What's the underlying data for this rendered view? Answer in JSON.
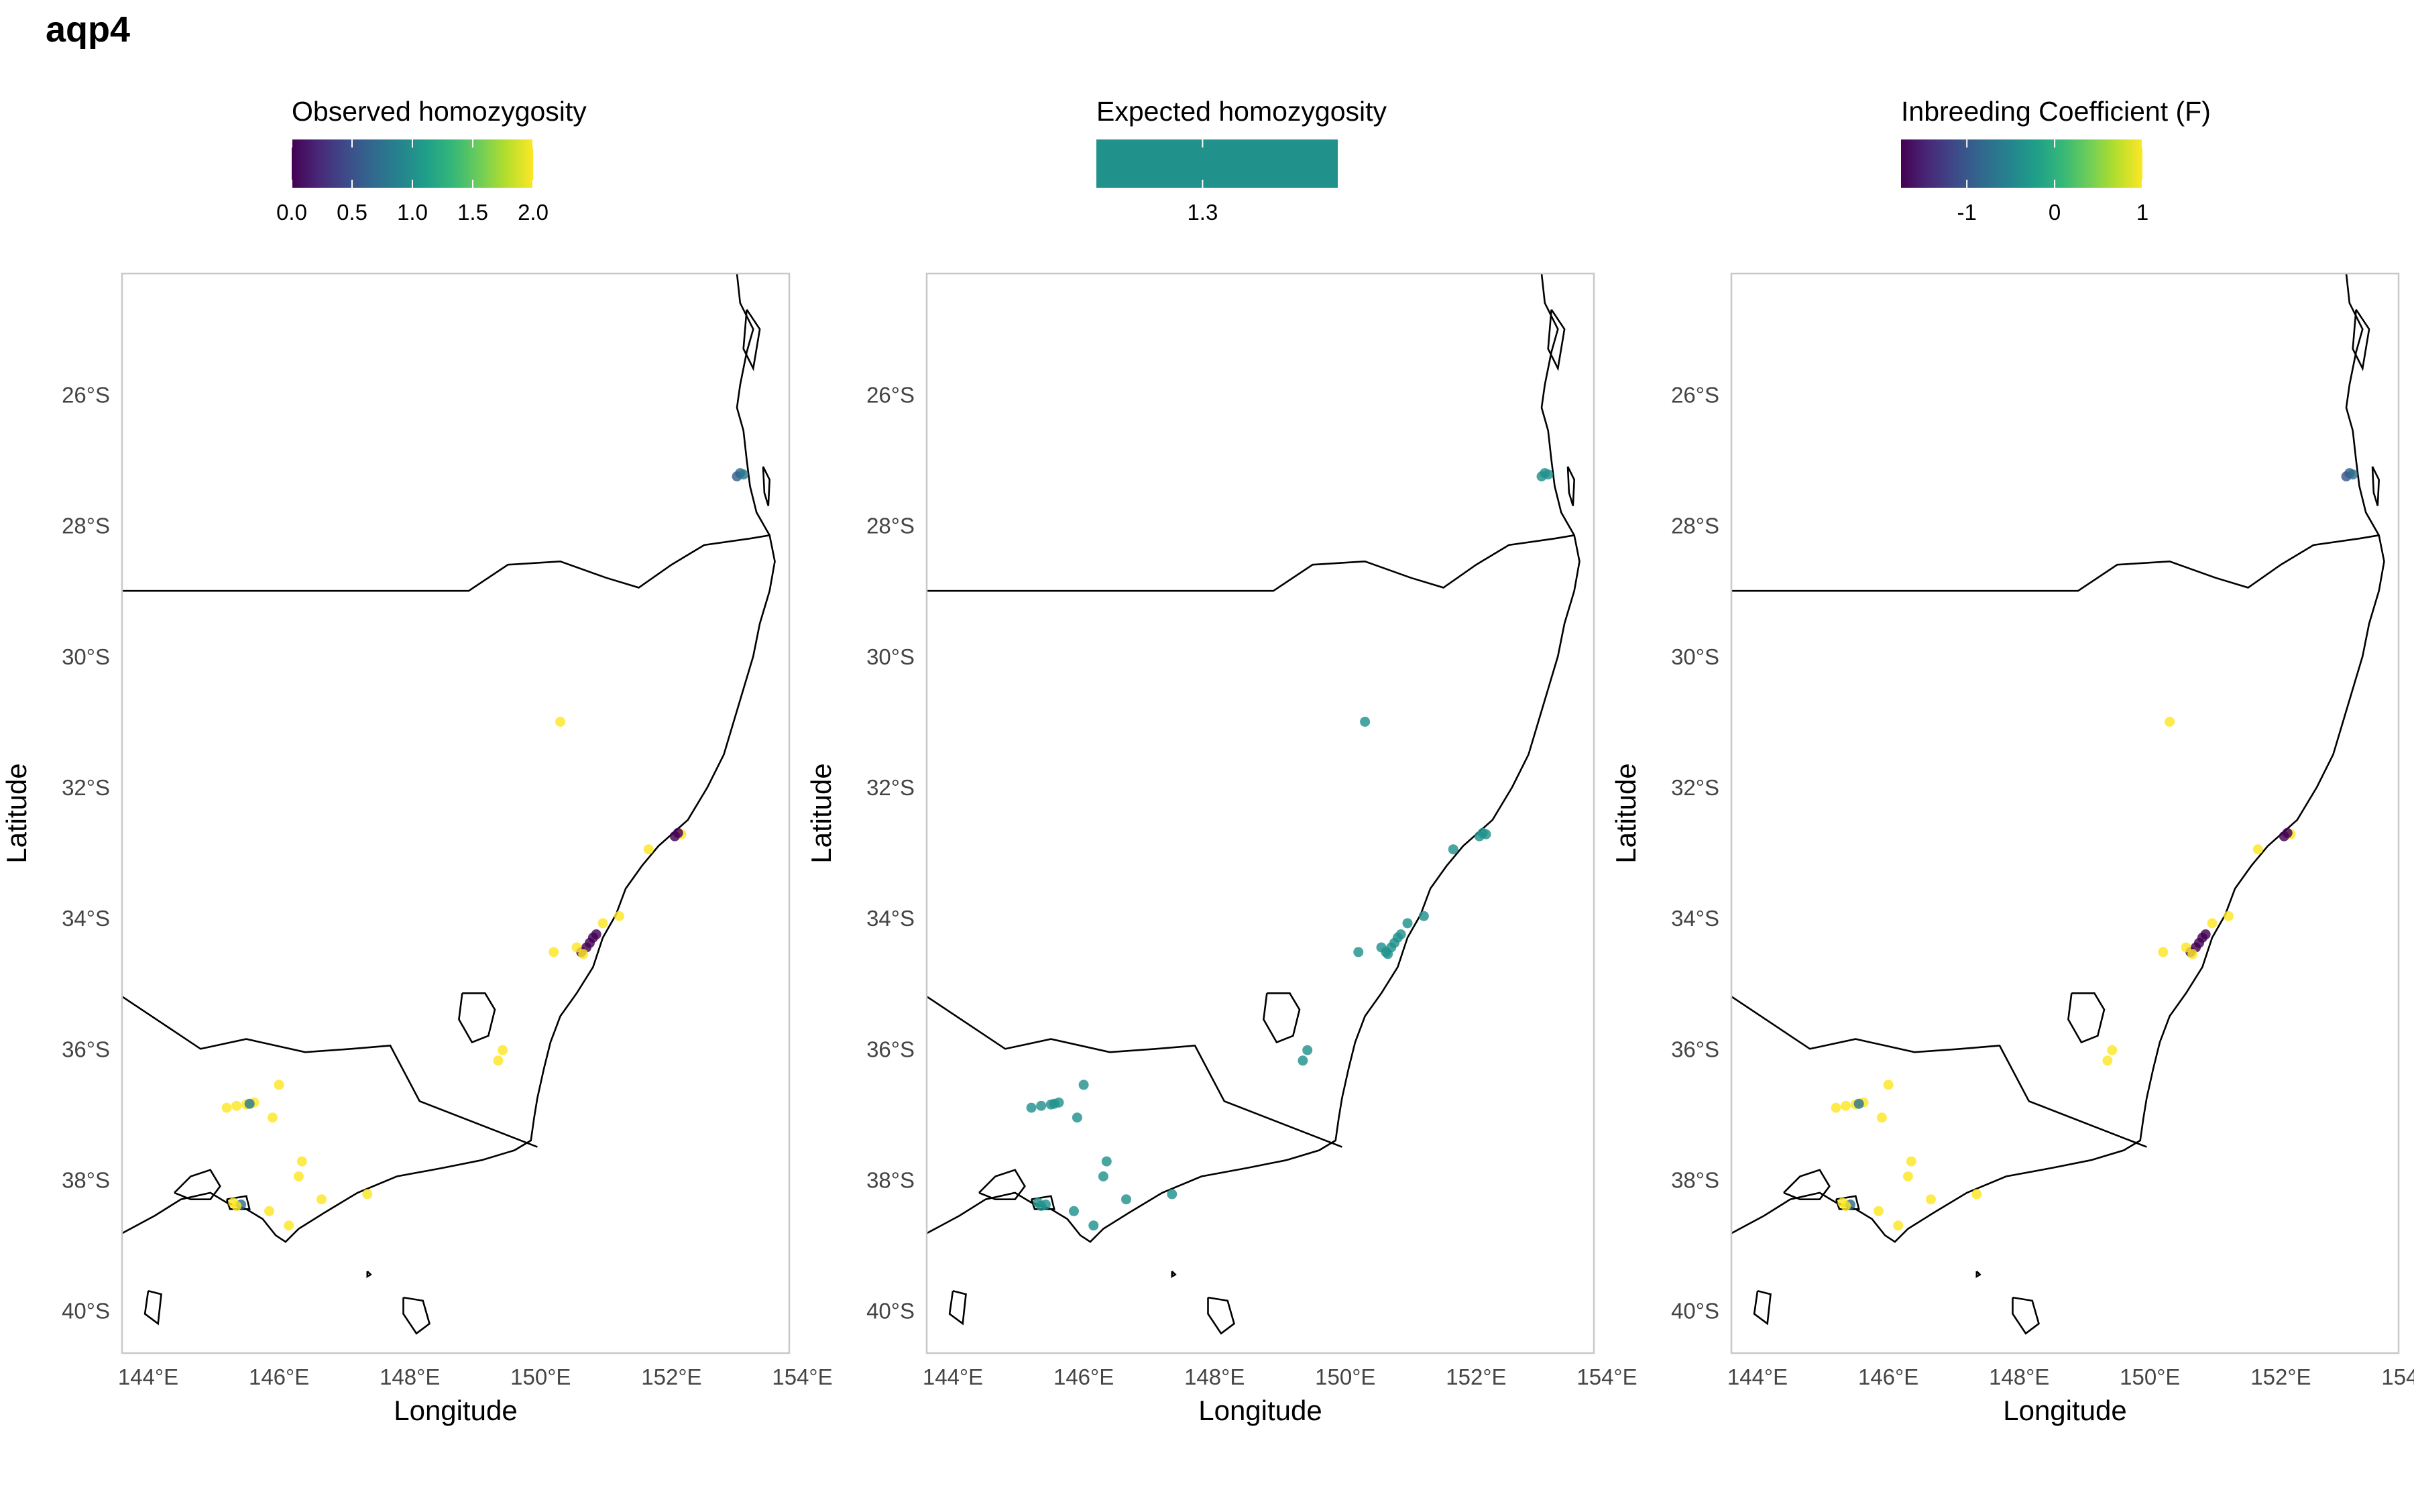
{
  "title": "aqp4",
  "colors": {
    "viridis": [
      "#440154",
      "#482878",
      "#3E4A89",
      "#31688E",
      "#26828E",
      "#1F9E89",
      "#35B779",
      "#6DCD59",
      "#B4DE2C",
      "#FDE725"
    ],
    "expected": "#21918C",
    "panel_border": "#c8c8c8",
    "coast": "#000000"
  },
  "axes": {
    "xlabel": "Longitude",
    "ylabel": "Latitude",
    "lat_ticks": [
      {
        "value": -26,
        "label": "26°S"
      },
      {
        "value": -28,
        "label": "28°S"
      },
      {
        "value": -30,
        "label": "30°S"
      },
      {
        "value": -32,
        "label": "32°S"
      },
      {
        "value": -34,
        "label": "34°S"
      },
      {
        "value": -36,
        "label": "36°S"
      },
      {
        "value": -38,
        "label": "38°S"
      },
      {
        "value": -40,
        "label": "40°S"
      }
    ],
    "lon_ticks": [
      {
        "value": 144,
        "label": "144°E"
      },
      {
        "value": 146,
        "label": "146°E"
      },
      {
        "value": 148,
        "label": "148°E"
      },
      {
        "value": 150,
        "label": "150°E"
      },
      {
        "value": 152,
        "label": "152°E"
      },
      {
        "value": 154,
        "label": "154°E"
      }
    ],
    "xlim": [
      143.6,
      153.8
    ],
    "ylim": [
      -40.65,
      -24.15
    ]
  },
  "panels": [
    {
      "id": "observed",
      "legend_title": "Observed homozygosity",
      "legend_type": "gradient",
      "legend_range": [
        0,
        2
      ],
      "legend_ticks": [
        {
          "value": 0,
          "label": "0.0"
        },
        {
          "value": 0.5,
          "label": "0.5"
        },
        {
          "value": 1,
          "label": "1.0"
        },
        {
          "value": 1.5,
          "label": "1.5"
        },
        {
          "value": 2,
          "label": "2.0"
        }
      ]
    },
    {
      "id": "expected",
      "legend_title": "Expected homozygosity",
      "legend_type": "single",
      "legend_ticks": [
        {
          "value": 1.3,
          "label": "1.3"
        }
      ]
    },
    {
      "id": "inbreeding",
      "legend_title": "Inbreeding Coefficient (F)",
      "legend_type": "gradient",
      "legend_range": [
        -1.75,
        1
      ],
      "legend_ticks": [
        {
          "value": -1,
          "label": "-1"
        },
        {
          "value": 0,
          "label": "0"
        },
        {
          "value": 1,
          "label": "1"
        }
      ]
    }
  ],
  "chart_data": {
    "type": "scatter",
    "samples": [
      {
        "lon": 153.05,
        "lat": -27.2,
        "observed": 0.7,
        "inbreeding": -0.9
      },
      {
        "lon": 153.0,
        "lat": -27.25,
        "observed": 0.6,
        "inbreeding": -1.0
      },
      {
        "lon": 153.1,
        "lat": -27.22,
        "observed": 0.8,
        "inbreeding": -0.8
      },
      {
        "lon": 150.3,
        "lat": -31.0,
        "observed": 2.0,
        "inbreeding": 1.0
      },
      {
        "lon": 151.65,
        "lat": -32.95,
        "observed": 2.0,
        "inbreeding": 1.0
      },
      {
        "lon": 152.15,
        "lat": -32.72,
        "observed": 2.0,
        "inbreeding": 1.0
      },
      {
        "lon": 152.05,
        "lat": -32.75,
        "observed": 0.0,
        "inbreeding": -1.75
      },
      {
        "lon": 152.1,
        "lat": -32.7,
        "observed": 0.0,
        "inbreeding": -1.75
      },
      {
        "lon": 151.2,
        "lat": -33.97,
        "observed": 2.0,
        "inbreeding": 1.0
      },
      {
        "lon": 150.95,
        "lat": -34.08,
        "observed": 2.0,
        "inbreeding": 1.0
      },
      {
        "lon": 150.85,
        "lat": -34.25,
        "observed": 0.0,
        "inbreeding": -1.75
      },
      {
        "lon": 150.8,
        "lat": -34.3,
        "observed": 0.0,
        "inbreeding": -1.75
      },
      {
        "lon": 150.75,
        "lat": -34.38,
        "observed": 0.0,
        "inbreeding": -1.75
      },
      {
        "lon": 150.7,
        "lat": -34.45,
        "observed": 0.0,
        "inbreeding": -1.75
      },
      {
        "lon": 150.62,
        "lat": -34.52,
        "observed": 0.0,
        "inbreeding": -1.75
      },
      {
        "lon": 150.55,
        "lat": -34.45,
        "observed": 2.0,
        "inbreeding": 1.0
      },
      {
        "lon": 150.65,
        "lat": -34.55,
        "observed": 2.0,
        "inbreeding": 1.0
      },
      {
        "lon": 150.2,
        "lat": -34.52,
        "observed": 2.0,
        "inbreeding": 1.0
      },
      {
        "lon": 149.42,
        "lat": -36.02,
        "observed": 2.0,
        "inbreeding": 1.0
      },
      {
        "lon": 149.35,
        "lat": -36.18,
        "observed": 2.0,
        "inbreeding": 1.0
      },
      {
        "lon": 145.2,
        "lat": -36.9,
        "observed": 2.0,
        "inbreeding": 1.0
      },
      {
        "lon": 145.35,
        "lat": -36.87,
        "observed": 2.0,
        "inbreeding": 1.0
      },
      {
        "lon": 145.5,
        "lat": -36.85,
        "observed": 2.0,
        "inbreeding": 1.0
      },
      {
        "lon": 145.62,
        "lat": -36.82,
        "observed": 2.0,
        "inbreeding": 1.0
      },
      {
        "lon": 145.55,
        "lat": -36.84,
        "observed": 0.8,
        "inbreeding": -0.7
      },
      {
        "lon": 145.9,
        "lat": -37.05,
        "observed": 2.0,
        "inbreeding": 1.0
      },
      {
        "lon": 146.0,
        "lat": -36.55,
        "observed": 2.0,
        "inbreeding": 1.0
      },
      {
        "lon": 146.35,
        "lat": -37.72,
        "observed": 2.0,
        "inbreeding": 1.0
      },
      {
        "lon": 146.3,
        "lat": -37.95,
        "observed": 2.0,
        "inbreeding": 1.0
      },
      {
        "lon": 146.65,
        "lat": -38.3,
        "observed": 2.0,
        "inbreeding": 1.0
      },
      {
        "lon": 147.35,
        "lat": -38.22,
        "observed": 2.0,
        "inbreeding": 1.0
      },
      {
        "lon": 145.3,
        "lat": -38.35,
        "observed": 2.0,
        "inbreeding": 1.0
      },
      {
        "lon": 145.42,
        "lat": -38.38,
        "observed": 0.7,
        "inbreeding": -0.8
      },
      {
        "lon": 145.35,
        "lat": -38.4,
        "observed": 2.0,
        "inbreeding": 1.0
      },
      {
        "lon": 145.85,
        "lat": -38.48,
        "observed": 2.0,
        "inbreeding": 1.0
      },
      {
        "lon": 146.15,
        "lat": -38.7,
        "observed": 2.0,
        "inbreeding": 1.0
      }
    ],
    "expected_value": 1.3
  },
  "coast": {
    "mainland": [
      [
        153.0,
        -24.15
      ],
      [
        153.05,
        -24.6
      ],
      [
        153.25,
        -25.0
      ],
      [
        153.15,
        -25.35
      ],
      [
        153.05,
        -25.85
      ],
      [
        153.0,
        -26.2
      ],
      [
        153.1,
        -26.55
      ],
      [
        153.15,
        -27.0
      ],
      [
        153.2,
        -27.4
      ],
      [
        153.3,
        -27.8
      ],
      [
        153.5,
        -28.15
      ],
      [
        153.58,
        -28.55
      ],
      [
        153.5,
        -29.0
      ],
      [
        153.35,
        -29.5
      ],
      [
        153.25,
        -30.0
      ],
      [
        153.1,
        -30.5
      ],
      [
        152.95,
        -31.0
      ],
      [
        152.8,
        -31.5
      ],
      [
        152.55,
        -32.0
      ],
      [
        152.25,
        -32.5
      ],
      [
        151.8,
        -32.9
      ],
      [
        151.55,
        -33.2
      ],
      [
        151.3,
        -33.55
      ],
      [
        151.15,
        -33.95
      ],
      [
        150.95,
        -34.3
      ],
      [
        150.8,
        -34.75
      ],
      [
        150.55,
        -35.15
      ],
      [
        150.3,
        -35.5
      ],
      [
        150.15,
        -35.9
      ],
      [
        150.05,
        -36.3
      ],
      [
        149.95,
        -36.75
      ],
      [
        149.9,
        -37.05
      ],
      [
        149.85,
        -37.4
      ],
      [
        149.6,
        -37.55
      ],
      [
        149.1,
        -37.7
      ],
      [
        148.5,
        -37.82
      ],
      [
        147.8,
        -37.95
      ],
      [
        147.2,
        -38.2
      ],
      [
        146.7,
        -38.5
      ],
      [
        146.3,
        -38.75
      ],
      [
        146.1,
        -38.95
      ],
      [
        145.95,
        -38.85
      ],
      [
        145.75,
        -38.6
      ],
      [
        145.5,
        -38.45
      ],
      [
        145.2,
        -38.35
      ],
      [
        144.95,
        -38.2
      ],
      [
        144.5,
        -38.3
      ],
      [
        144.1,
        -38.55
      ],
      [
        143.6,
        -38.82
      ]
    ],
    "qld_border": [
      [
        143.6,
        -29.0
      ],
      [
        146.5,
        -29.0
      ],
      [
        148.9,
        -29.0
      ],
      [
        149.5,
        -28.6
      ],
      [
        150.3,
        -28.55
      ],
      [
        151.0,
        -28.8
      ],
      [
        151.5,
        -28.95
      ],
      [
        152.0,
        -28.6
      ],
      [
        152.5,
        -28.3
      ],
      [
        153.2,
        -28.2
      ],
      [
        153.5,
        -28.15
      ]
    ],
    "vic_border": [
      [
        143.6,
        -35.2
      ],
      [
        144.2,
        -35.6
      ],
      [
        144.8,
        -36.0
      ],
      [
        145.5,
        -35.85
      ],
      [
        146.4,
        -36.05
      ],
      [
        147.1,
        -36.0
      ],
      [
        147.7,
        -35.95
      ],
      [
        148.15,
        -36.8
      ],
      [
        149.95,
        -37.5
      ]
    ],
    "act": [
      [
        148.8,
        -35.15
      ],
      [
        149.15,
        -35.15
      ],
      [
        149.3,
        -35.4
      ],
      [
        149.2,
        -35.8
      ],
      [
        148.95,
        -35.9
      ],
      [
        148.75,
        -35.55
      ],
      [
        148.8,
        -35.15
      ]
    ],
    "port_phillip": [
      [
        144.4,
        -38.2
      ],
      [
        144.65,
        -37.95
      ],
      [
        144.95,
        -37.85
      ],
      [
        145.1,
        -38.1
      ],
      [
        144.95,
        -38.3
      ],
      [
        144.65,
        -38.3
      ],
      [
        144.4,
        -38.2
      ]
    ],
    "westernport": [
      [
        145.2,
        -38.3
      ],
      [
        145.5,
        -38.25
      ],
      [
        145.55,
        -38.45
      ],
      [
        145.25,
        -38.45
      ],
      [
        145.2,
        -38.3
      ]
    ],
    "stradbroke": [
      [
        153.4,
        -27.1
      ],
      [
        153.5,
        -27.3
      ],
      [
        153.48,
        -27.7
      ],
      [
        153.42,
        -27.5
      ],
      [
        153.4,
        -27.1
      ]
    ],
    "fraser": [
      [
        153.15,
        -24.7
      ],
      [
        153.35,
        -25.0
      ],
      [
        153.25,
        -25.6
      ],
      [
        153.1,
        -25.3
      ],
      [
        153.15,
        -24.7
      ]
    ],
    "islands": [
      [
        [
          144.0,
          -39.7
        ],
        [
          144.2,
          -39.75
        ],
        [
          144.15,
          -40.2
        ],
        [
          143.95,
          -40.05
        ],
        [
          144.0,
          -39.7
        ]
      ],
      [
        [
          147.9,
          -39.8
        ],
        [
          148.2,
          -39.85
        ],
        [
          148.3,
          -40.2
        ],
        [
          148.1,
          -40.35
        ],
        [
          147.9,
          -40.05
        ],
        [
          147.9,
          -39.8
        ]
      ],
      [
        [
          147.35,
          -39.4
        ],
        [
          147.4,
          -39.45
        ],
        [
          147.35,
          -39.48
        ],
        [
          147.35,
          -39.4
        ]
      ]
    ]
  }
}
